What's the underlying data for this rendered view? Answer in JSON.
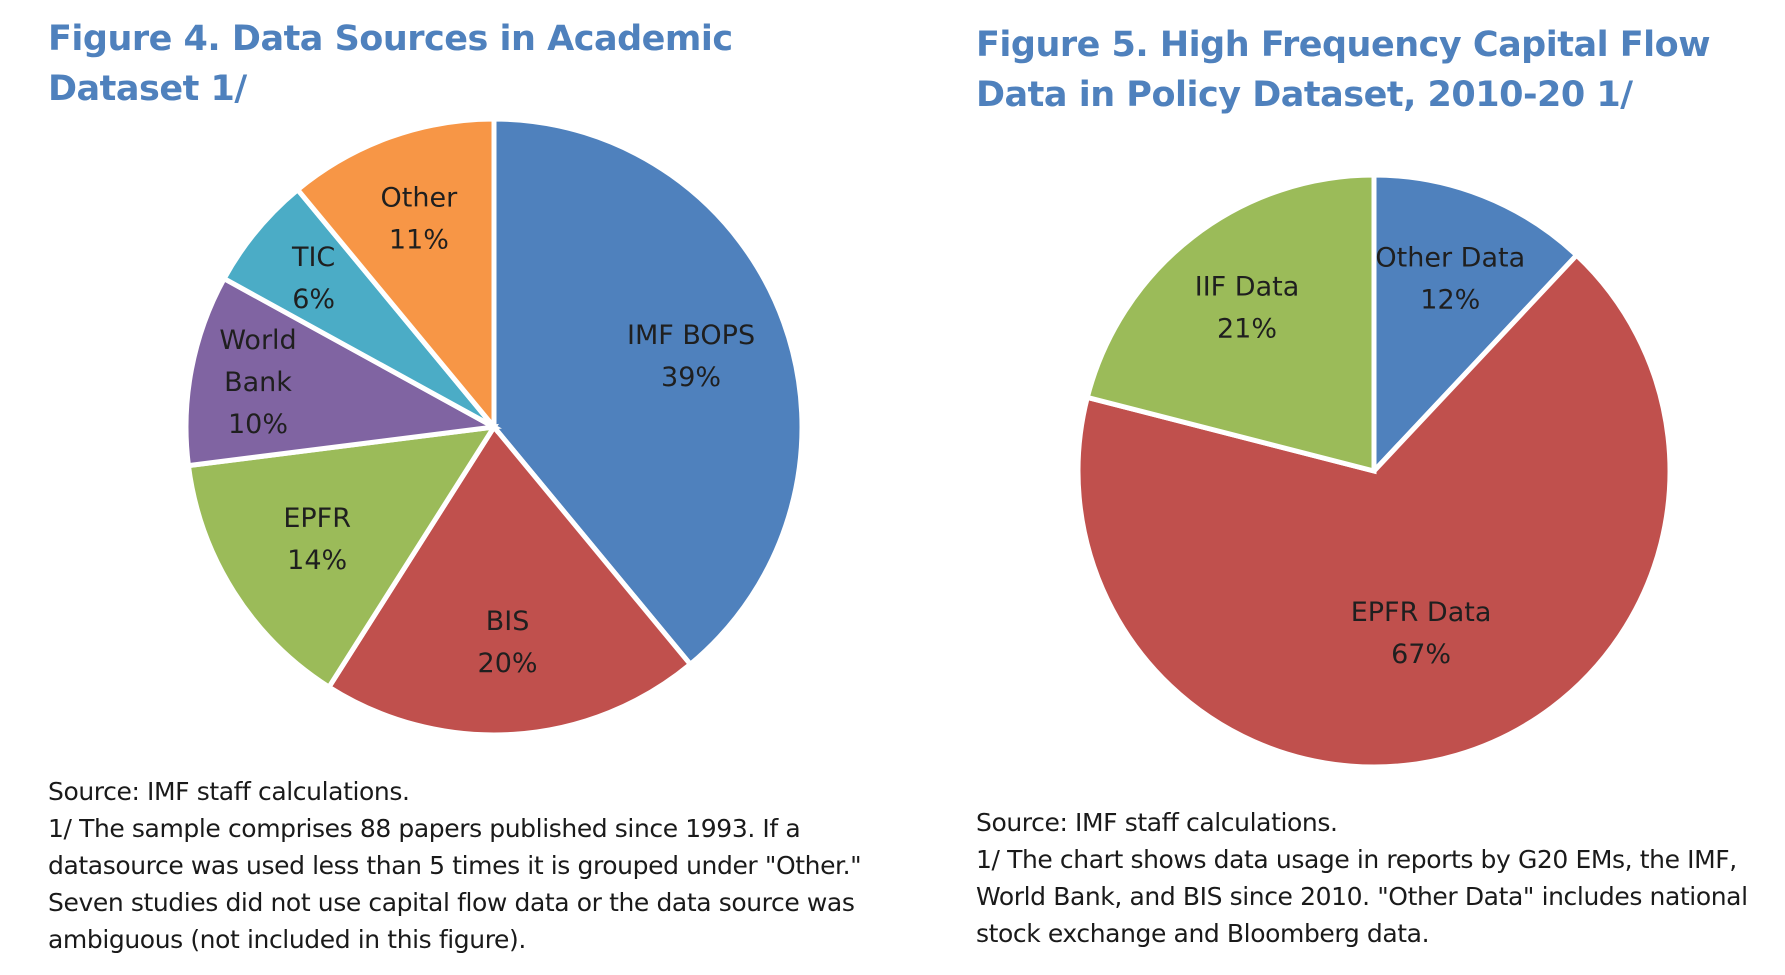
{
  "figures": [
    {
      "title": "Figure  4. Data Sources in Academic Dataset 1/",
      "source": "Source: IMF staff calculations.",
      "footnote": "1/ The sample comprises 88 papers published since 1993. If a datasource was used less than 5 times it is grouped under \"Other.\" Seven studies did not use capital flow data or the data source was ambiguous (not included in this figure)."
    },
    {
      "title": "Figure  5. High Frequency Capital Flow Data in Policy Dataset, 2010-20 1/",
      "source": "Source: IMF staff calculations.",
      "footnote": "1/ The chart shows data usage in reports by G20 EMs, the IMF, World Bank, and BIS since 2010. \"Other Data\" includes national stock exchange and Bloomberg data."
    }
  ],
  "chart_data": [
    {
      "type": "pie",
      "title": "Figure  4. Data Sources in Academic Dataset 1/",
      "start": "12 o'clock, clockwise",
      "slices": [
        {
          "label": [
            "IMF BOPS",
            "39%"
          ],
          "value": 39,
          "color": "#4f81bd"
        },
        {
          "label": [
            "BIS",
            "20%"
          ],
          "value": 20,
          "color": "#c0504d"
        },
        {
          "label": [
            "EPFR",
            "14%"
          ],
          "value": 14,
          "color": "#9bbb59"
        },
        {
          "label": [
            "World",
            "Bank",
            "10%"
          ],
          "value": 10,
          "color": "#8064a2"
        },
        {
          "label": [
            "TIC",
            "6%"
          ],
          "value": 6,
          "color": "#4bacc6"
        },
        {
          "label": [
            "Other",
            "11%"
          ],
          "value": 11,
          "color": "#f79646"
        }
      ]
    },
    {
      "type": "pie",
      "title": "Figure  5. High Frequency Capital Flow Data in Policy Dataset, 2010-20 1/",
      "start": "12 o'clock, clockwise",
      "slices": [
        {
          "label": [
            "Other Data",
            "12%"
          ],
          "value": 12,
          "color": "#4f81bd"
        },
        {
          "label": [
            "EPFR Data",
            "67%"
          ],
          "value": 67,
          "color": "#c0504d"
        },
        {
          "label": [
            "IIF Data",
            "21%"
          ],
          "value": 21,
          "color": "#9bbb59"
        }
      ]
    }
  ]
}
